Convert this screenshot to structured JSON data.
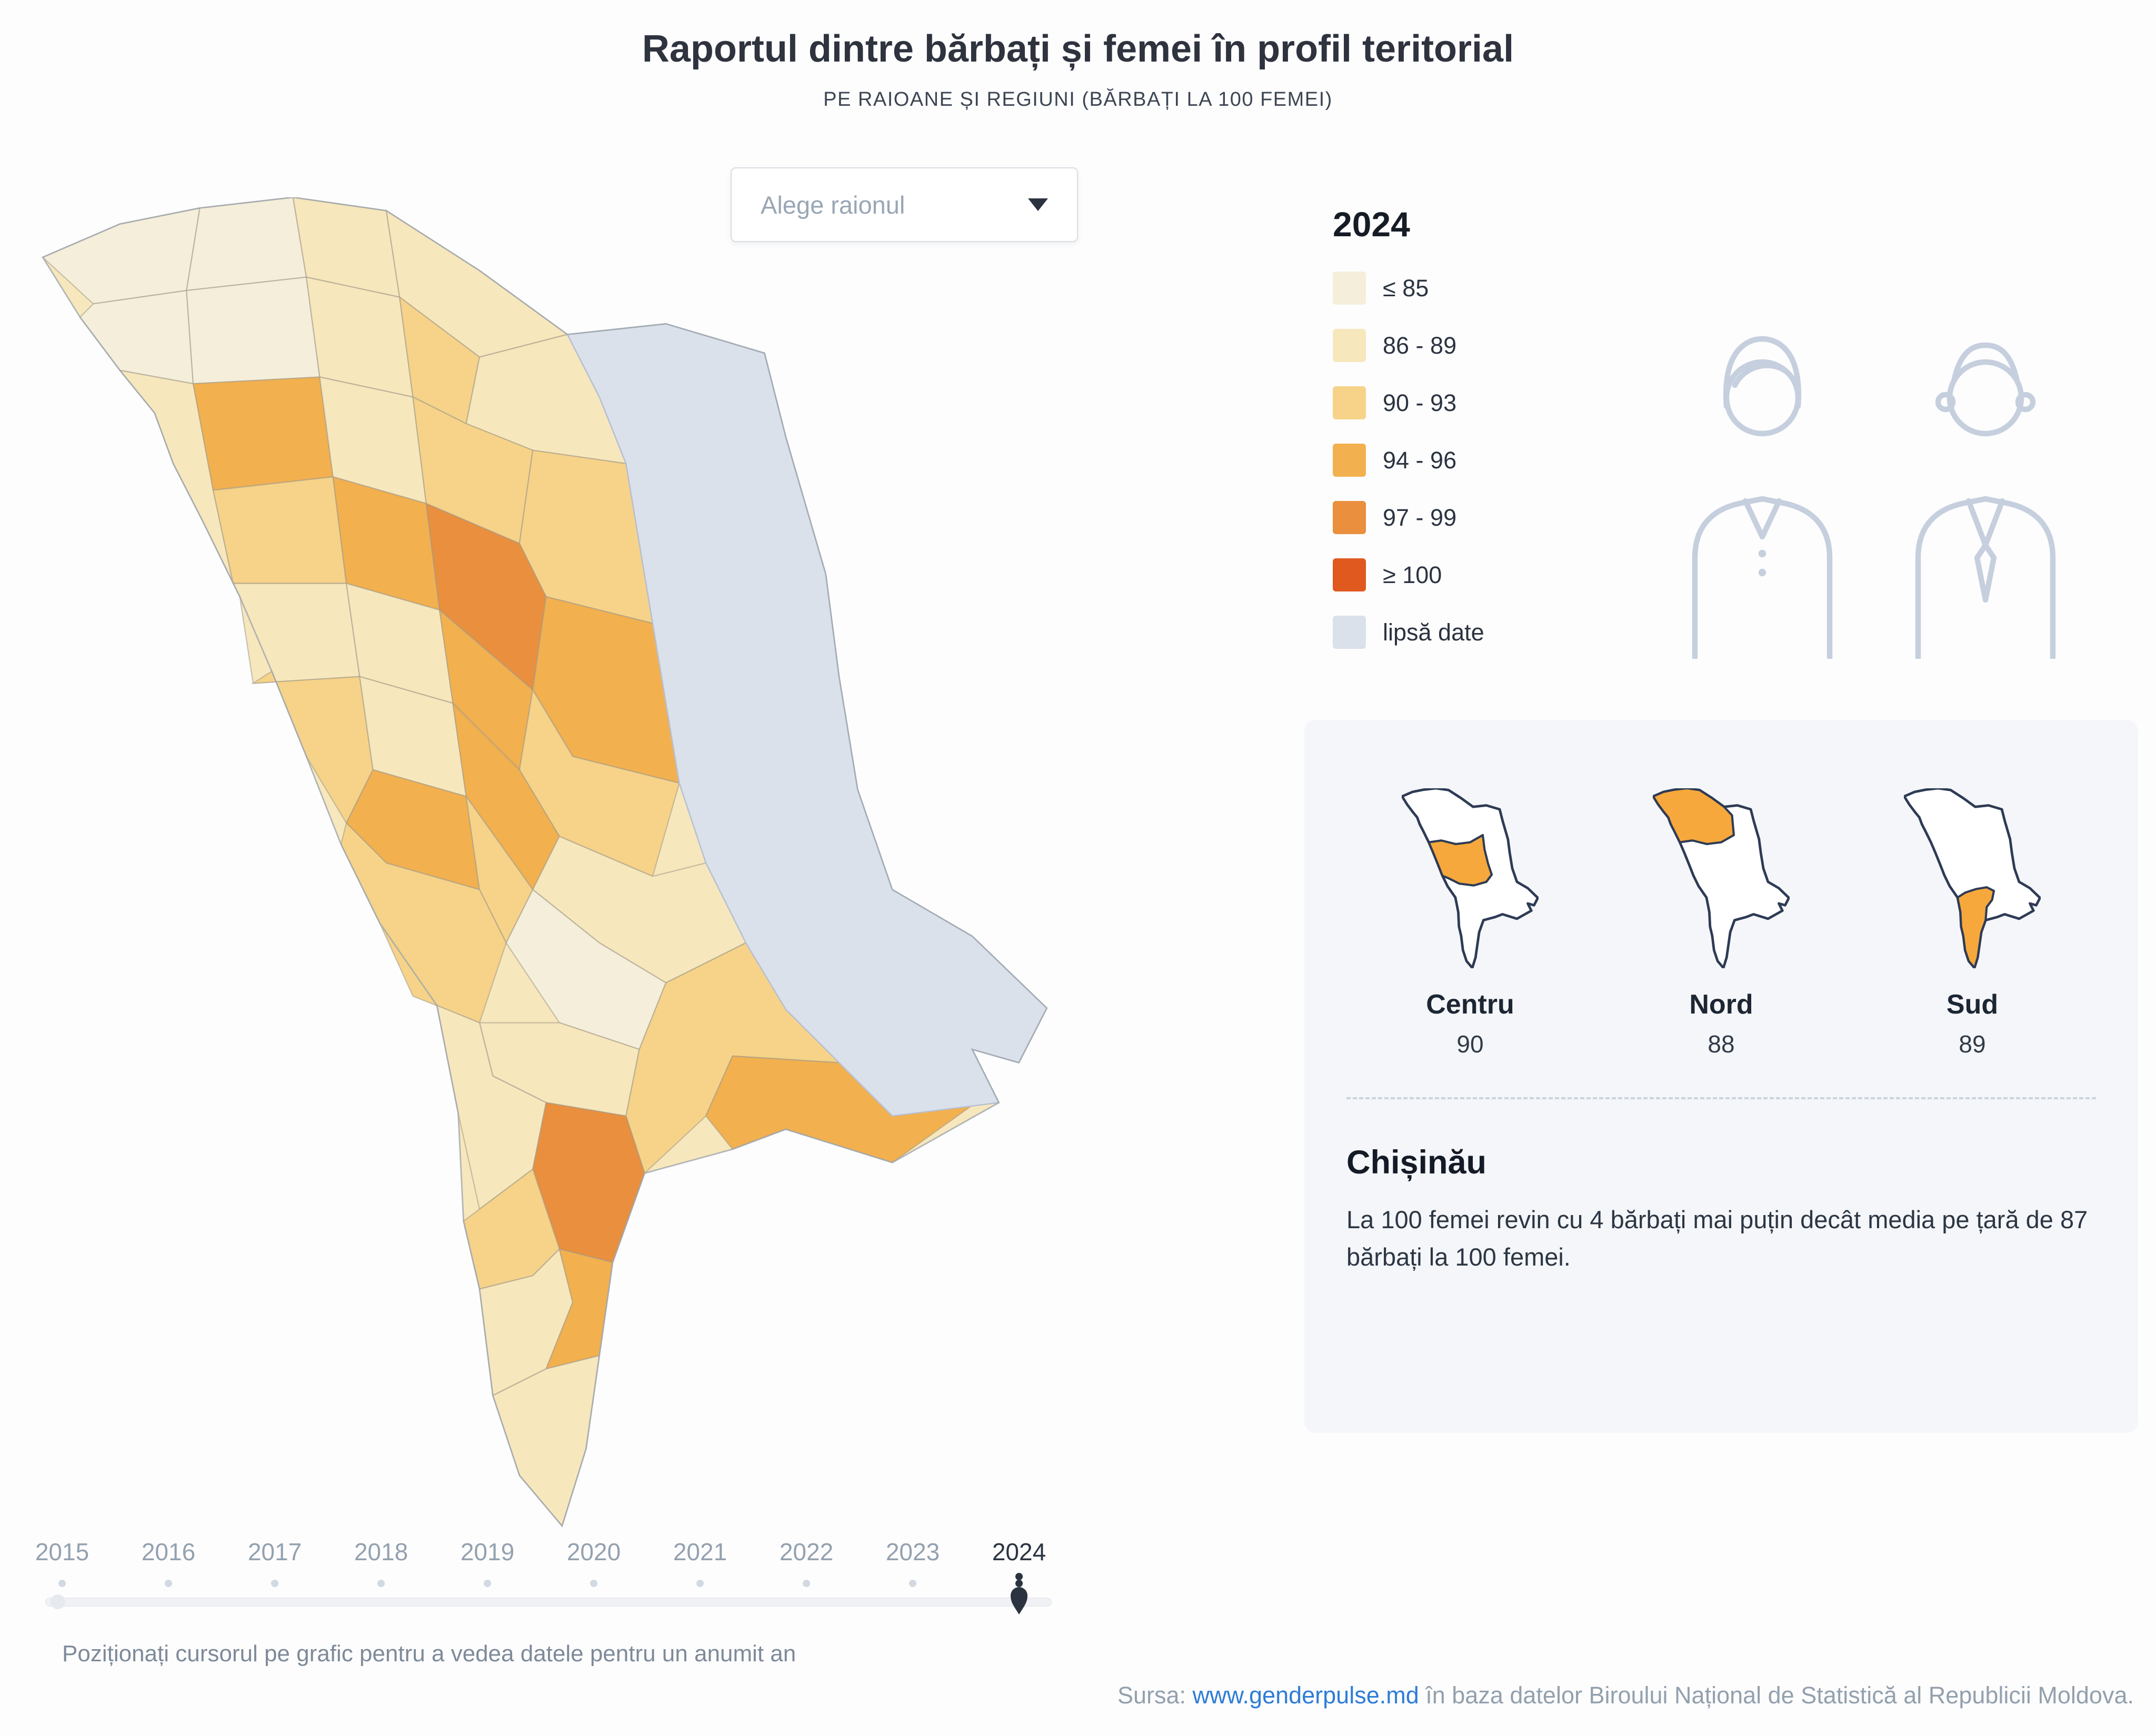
{
  "title": "Raportul dintre bărbați și femei în profil teritorial",
  "subtitle": "PE RAIOANE ȘI REGIUNI (BĂRBAȚI LA 100 FEMEI)",
  "dropdown": {
    "placeholder": "Alege raionul"
  },
  "legend": {
    "year": "2024",
    "items": [
      {
        "label": "≤ 85",
        "color": "#f4eeda"
      },
      {
        "label": "86 - 89",
        "color": "#f7e7bc"
      },
      {
        "label": "90 - 93",
        "color": "#f6d388"
      },
      {
        "label": "94 - 96",
        "color": "#f2b04f"
      },
      {
        "label": "97 - 99",
        "color": "#e98f3e"
      },
      {
        "label": "≥ 100",
        "color": "#e05a20"
      },
      {
        "label": "lipsă date",
        "color": "#dbe1eb"
      }
    ]
  },
  "regions": [
    {
      "name": "Centru",
      "value": "90"
    },
    {
      "name": "Nord",
      "value": "88"
    },
    {
      "name": "Sud",
      "value": "89"
    }
  ],
  "chisinau": {
    "title": "Chișinău",
    "text": "La 100 femei revin cu 4 bărbați mai puțin decât media pe țară de 87 bărbați la 100 femei."
  },
  "timeline": {
    "years": [
      "2015",
      "2016",
      "2017",
      "2018",
      "2019",
      "2020",
      "2021",
      "2022",
      "2023",
      "2024"
    ],
    "selected": "2024",
    "hint": "Poziționați cursorul pe grafic pentru a vedea datele pentru un anumit an"
  },
  "source": {
    "prefix": "Sursa: ",
    "link": "www.genderpulse.md",
    "suffix": " în baza datelor Biroului Național de Statistică al Republicii Moldova."
  },
  "colors": {
    "region_highlight": "#f6a83c",
    "minimap_stroke": "#2e3b55",
    "map_border": "#a0a6ad",
    "district_border": "#a39a8b",
    "selected_color": "#2c3340",
    "link_color": "#2e7cd6"
  }
}
